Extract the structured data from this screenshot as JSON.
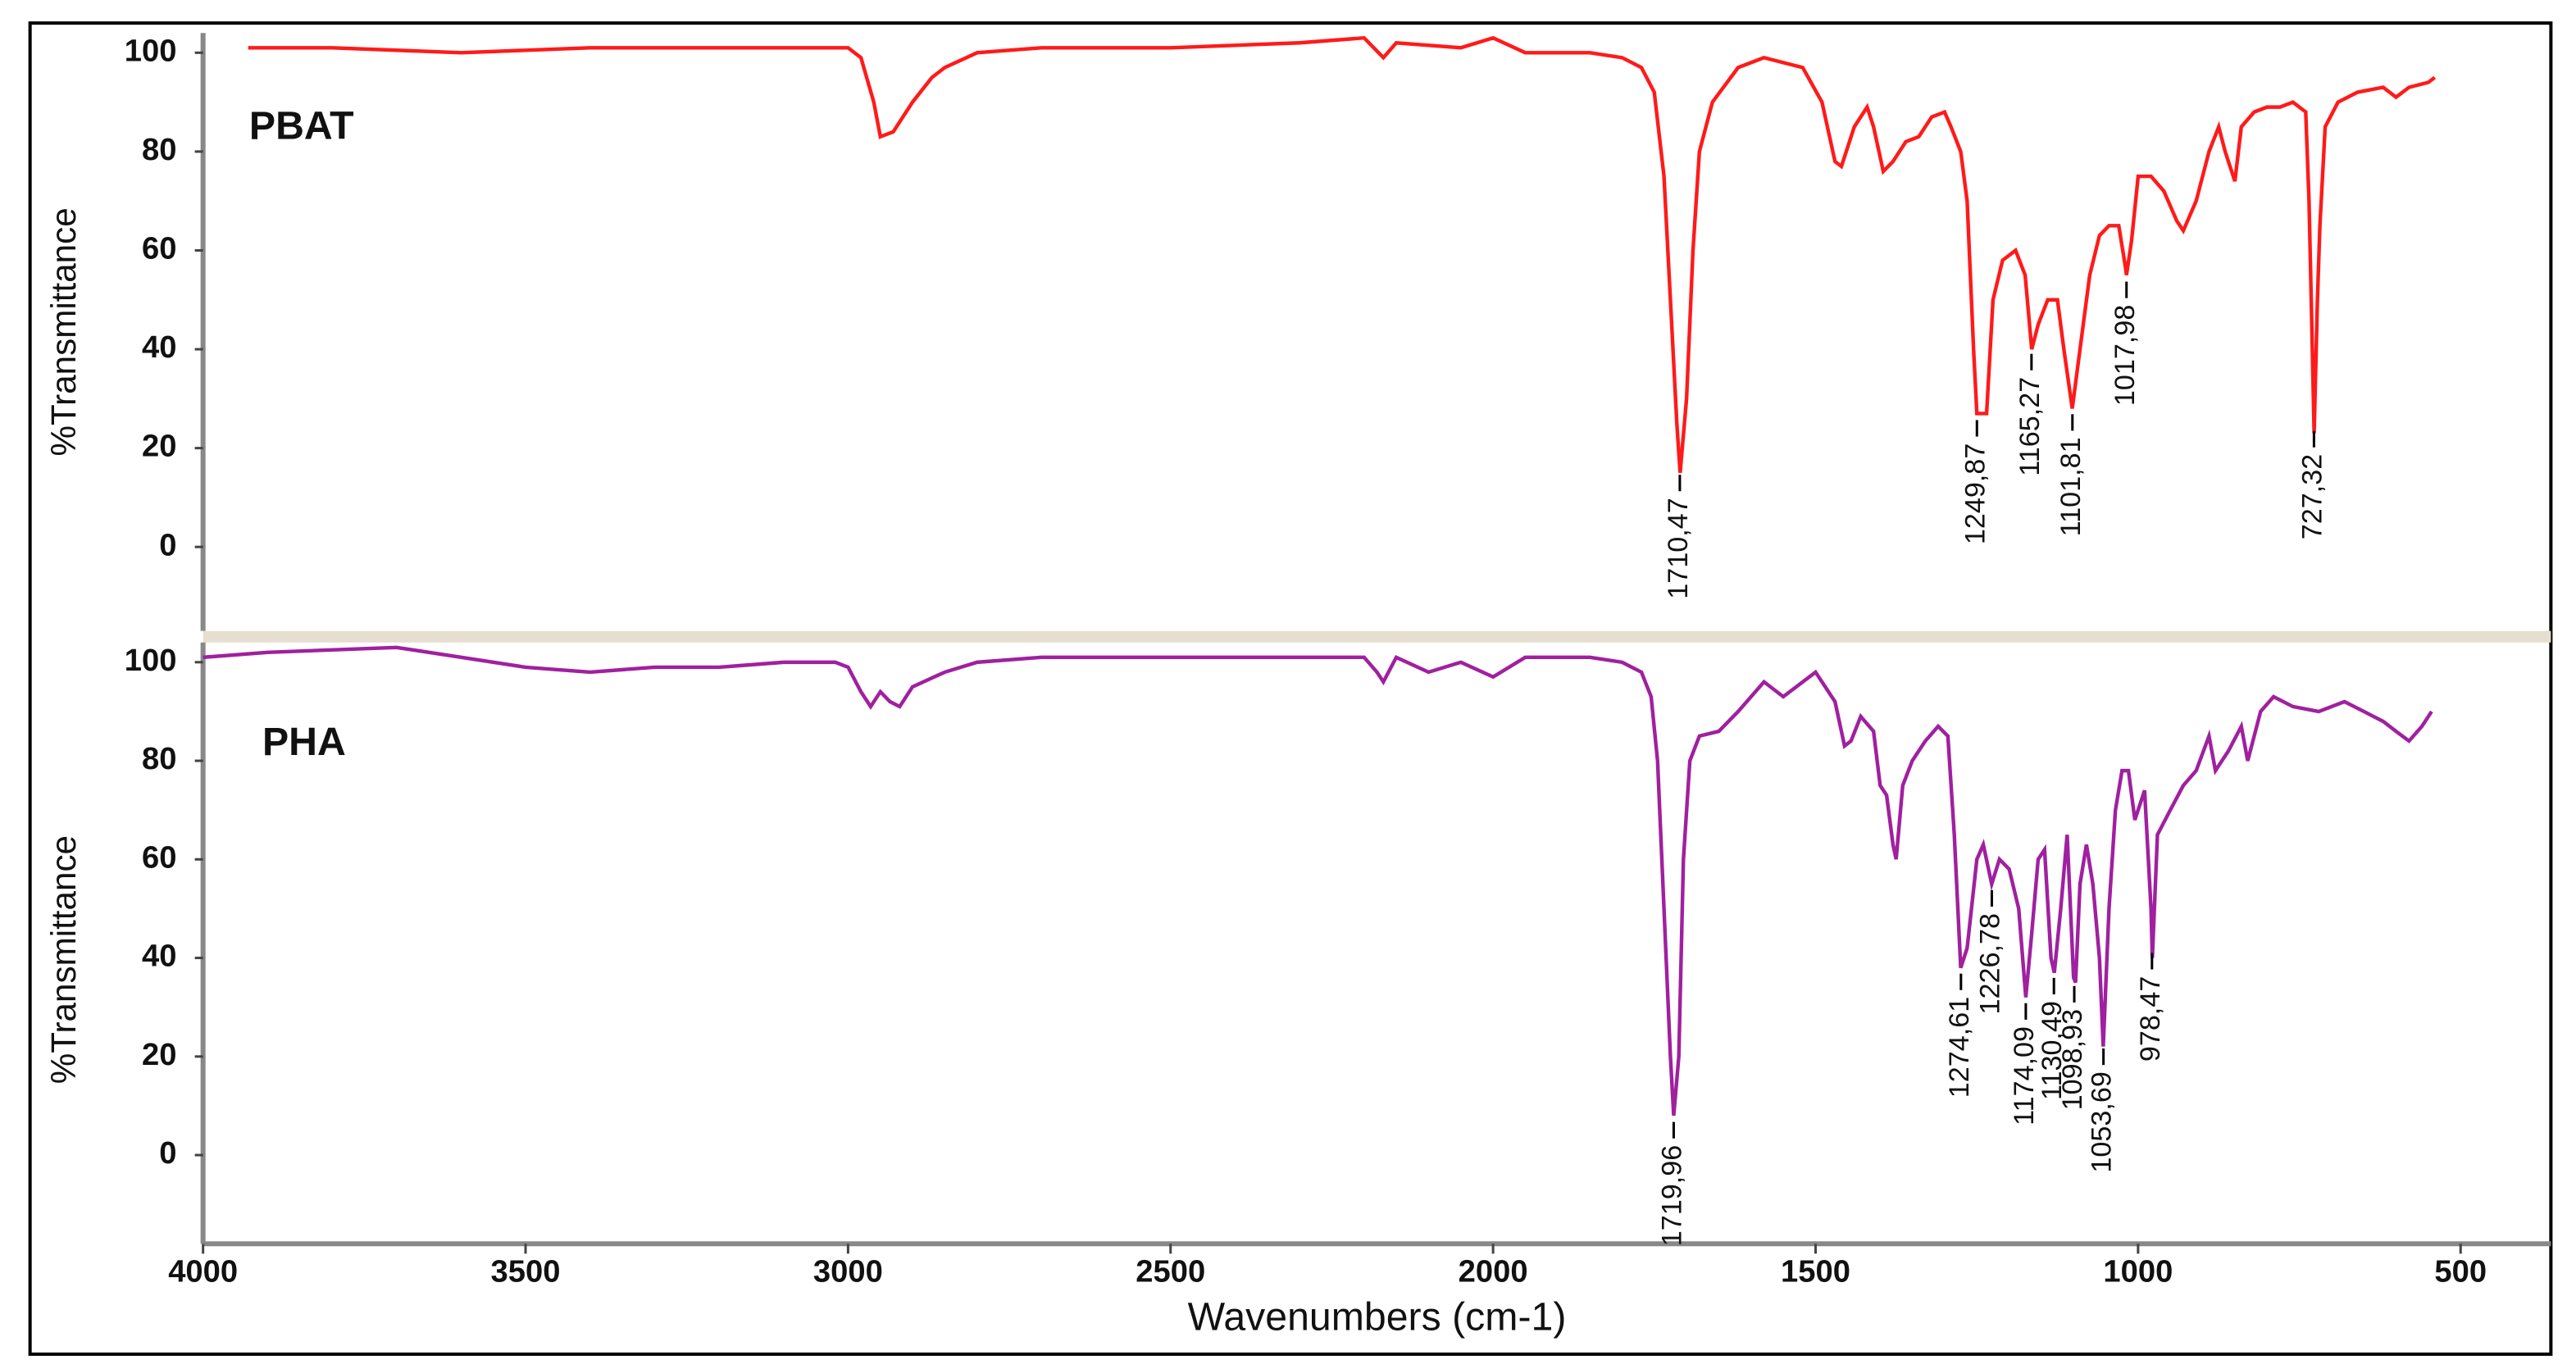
{
  "chart_data": [
    {
      "type": "line",
      "ylabel": "%Transmittance",
      "xlim": [
        4000,
        360
      ],
      "ylim": [
        -17,
        104
      ],
      "yticks": [
        0,
        20,
        40,
        60,
        80,
        100
      ],
      "x": [
        3930,
        3800,
        3600,
        3400,
        3200,
        3000,
        2980,
        2960,
        2950,
        2930,
        2900,
        2870,
        2850,
        2800,
        2700,
        2500,
        2300,
        2200,
        2170,
        2150,
        2050,
        2000,
        1950,
        1850,
        1800,
        1770,
        1750,
        1735,
        1725,
        1715,
        1710,
        1700,
        1690,
        1680,
        1660,
        1620,
        1580,
        1550,
        1520,
        1490,
        1470,
        1460,
        1440,
        1420,
        1410,
        1395,
        1380,
        1360,
        1340,
        1320,
        1300,
        1290,
        1275,
        1265,
        1255,
        1250,
        1235,
        1225,
        1210,
        1190,
        1175,
        1165,
        1155,
        1140,
        1125,
        1115,
        1102,
        1090,
        1075,
        1060,
        1045,
        1030,
        1020,
        1018,
        1010,
        1000,
        980,
        960,
        940,
        930,
        910,
        890,
        875,
        865,
        850,
        840,
        820,
        800,
        780,
        760,
        740,
        735,
        730,
        727,
        722,
        718,
        710,
        690,
        660,
        620,
        600,
        580,
        550,
        540
      ],
      "series": [
        {
          "name": "PBAT",
          "color": "#ff1a1a",
          "values": [
            101,
            101,
            100,
            101,
            101,
            101,
            99,
            90,
            83,
            84,
            90,
            95,
            97,
            100,
            101,
            101,
            102,
            103,
            99,
            102,
            101,
            103,
            100,
            100,
            99,
            97,
            92,
            75,
            50,
            25,
            15,
            30,
            60,
            80,
            90,
            97,
            99,
            98,
            97,
            90,
            78,
            77,
            85,
            89,
            85,
            76,
            78,
            82,
            83,
            87,
            88,
            85,
            80,
            70,
            40,
            27,
            27,
            50,
            58,
            60,
            55,
            40,
            45,
            50,
            50,
            40,
            28,
            40,
            55,
            63,
            65,
            65,
            57,
            55,
            62,
            75,
            75,
            72,
            66,
            64,
            70,
            80,
            85,
            80,
            74,
            85,
            88,
            89,
            89,
            90,
            88,
            70,
            40,
            23,
            50,
            65,
            85,
            90,
            92,
            93,
            91,
            93,
            94,
            95
          ]
        }
      ],
      "annotations": [
        {
          "text": "1710,47",
          "x": 1710.47
        },
        {
          "text": "1249,87",
          "x": 1249.87
        },
        {
          "text": "1165,27",
          "x": 1165.27
        },
        {
          "text": "1101,81",
          "x": 1101.81
        },
        {
          "text": "1017,98",
          "x": 1017.98
        },
        {
          "text": "727,32",
          "x": 727.32
        }
      ]
    },
    {
      "type": "line",
      "ylabel": "%Transmittance",
      "xlabel": "Wavenumbers (cm-1)",
      "xlim": [
        4000,
        360
      ],
      "ylim": [
        -18,
        104
      ],
      "yticks": [
        0,
        20,
        40,
        60,
        80,
        100
      ],
      "xticks": [
        4000,
        3500,
        3000,
        2500,
        2000,
        1500,
        1000,
        500
      ],
      "x": [
        4000,
        3900,
        3700,
        3600,
        3500,
        3400,
        3300,
        3200,
        3100,
        3020,
        3000,
        2980,
        2965,
        2950,
        2935,
        2920,
        2900,
        2850,
        2800,
        2700,
        2500,
        2300,
        2200,
        2180,
        2170,
        2150,
        2100,
        2050,
        2000,
        1950,
        1850,
        1800,
        1770,
        1755,
        1745,
        1735,
        1725,
        1720,
        1712,
        1705,
        1695,
        1680,
        1650,
        1620,
        1580,
        1550,
        1500,
        1470,
        1455,
        1445,
        1430,
        1410,
        1400,
        1390,
        1380,
        1375,
        1365,
        1350,
        1330,
        1310,
        1295,
        1285,
        1275,
        1265,
        1250,
        1240,
        1227,
        1215,
        1200,
        1185,
        1174,
        1165,
        1155,
        1145,
        1135,
        1130,
        1120,
        1110,
        1100,
        1097,
        1090,
        1080,
        1070,
        1060,
        1054,
        1045,
        1035,
        1025,
        1015,
        1005,
        990,
        980,
        978,
        970,
        950,
        930,
        910,
        890,
        880,
        860,
        840,
        830,
        810,
        790,
        760,
        720,
        680,
        650,
        620,
        600,
        580,
        560,
        545
      ],
      "series": [
        {
          "name": "PHA",
          "color": "#a0209f",
          "values": [
            101,
            102,
            103,
            101,
            99,
            98,
            99,
            99,
            100,
            100,
            99,
            94,
            91,
            94,
            92,
            91,
            95,
            98,
            100,
            101,
            101,
            101,
            101,
            98,
            96,
            101,
            98,
            100,
            97,
            101,
            101,
            100,
            98,
            93,
            80,
            50,
            20,
            8,
            20,
            60,
            80,
            85,
            86,
            90,
            96,
            93,
            98,
            92,
            83,
            84,
            89,
            86,
            75,
            73,
            63,
            60,
            75,
            80,
            84,
            87,
            85,
            65,
            38,
            42,
            60,
            63,
            55,
            60,
            58,
            50,
            32,
            45,
            60,
            62,
            40,
            37,
            50,
            65,
            36,
            35,
            55,
            63,
            55,
            40,
            22,
            50,
            70,
            78,
            78,
            68,
            74,
            50,
            40,
            65,
            70,
            75,
            78,
            85,
            78,
            82,
            87,
            80,
            90,
            93,
            91,
            90,
            92,
            90,
            88,
            86,
            84,
            87,
            90
          ]
        }
      ],
      "annotations": [
        {
          "text": "1719,96",
          "x": 1719.96
        },
        {
          "text": "1274,61",
          "x": 1274.61
        },
        {
          "text": "1226,78",
          "x": 1226.78
        },
        {
          "text": "1174,09",
          "x": 1174.09
        },
        {
          "text": "1130,49",
          "x": 1130.49
        },
        {
          "text": "1098,93",
          "x": 1098.93
        },
        {
          "text": "1053,69",
          "x": 1053.69
        },
        {
          "text": "978,47",
          "x": 978.47
        }
      ]
    }
  ]
}
